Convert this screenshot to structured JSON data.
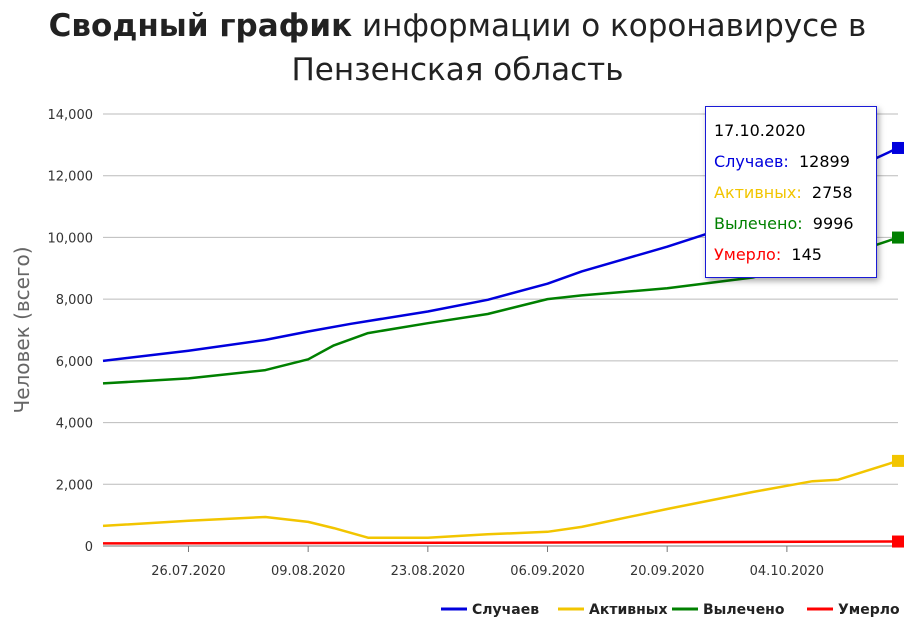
{
  "title": {
    "bold": "Сводный график",
    "rest": "информации о коронавирусе в",
    "line2": "Пензенская область"
  },
  "tooltip": {
    "date": "17.10.2020",
    "rows": [
      {
        "label": "Случаев:",
        "value": "12899",
        "color": "#0000dd"
      },
      {
        "label": "Активных:",
        "value": "2758",
        "color": "#f2c500"
      },
      {
        "label": "Вылечено:",
        "value": "9996",
        "color": "#008000"
      },
      {
        "label": "Умерло:",
        "value": "145",
        "color": "#ff0000"
      }
    ]
  },
  "chart_data": {
    "type": "line",
    "ylabel": "Человек (всего)",
    "xlabel": "",
    "ylim": [
      0,
      14000
    ],
    "yticks": [
      0,
      2000,
      4000,
      6000,
      8000,
      10000,
      12000,
      14000
    ],
    "ytick_labels": [
      "0",
      "2,000",
      "4,000",
      "6,000",
      "8,000",
      "10,000",
      "12,000",
      "14,000"
    ],
    "x_range": [
      "2020-07-16",
      "2020-10-17"
    ],
    "xticks": [
      "2020-07-26",
      "2020-08-09",
      "2020-08-23",
      "2020-09-06",
      "2020-09-20",
      "2020-10-04"
    ],
    "xtick_labels": [
      "26.07.2020",
      "09.08.2020",
      "23.08.2020",
      "06.09.2020",
      "20.09.2020",
      "04.10.2020"
    ],
    "grid": true,
    "legend_position": "bottom-right",
    "series": [
      {
        "name": "Случаев",
        "color": "#0000dd",
        "x": [
          "2020-07-16",
          "2020-07-26",
          "2020-08-04",
          "2020-08-09",
          "2020-08-14",
          "2020-08-23",
          "2020-08-30",
          "2020-09-06",
          "2020-09-10",
          "2020-09-20",
          "2020-09-30",
          "2020-10-04",
          "2020-10-10",
          "2020-10-17"
        ],
        "y": [
          6000,
          6330,
          6680,
          6950,
          7200,
          7600,
          7980,
          8500,
          8900,
          9700,
          10600,
          11100,
          12000,
          12899
        ]
      },
      {
        "name": "Активных",
        "color": "#f2c500",
        "x": [
          "2020-07-16",
          "2020-07-26",
          "2020-08-04",
          "2020-08-09",
          "2020-08-12",
          "2020-08-16",
          "2020-08-23",
          "2020-08-30",
          "2020-09-06",
          "2020-09-10",
          "2020-09-20",
          "2020-09-30",
          "2020-10-04",
          "2020-10-07",
          "2020-10-10",
          "2020-10-17"
        ],
        "y": [
          650,
          820,
          940,
          780,
          580,
          270,
          270,
          380,
          460,
          620,
          1200,
          1750,
          1950,
          2100,
          2150,
          2758
        ]
      },
      {
        "name": "Вылечено",
        "color": "#008000",
        "x": [
          "2020-07-16",
          "2020-07-26",
          "2020-08-04",
          "2020-08-09",
          "2020-08-12",
          "2020-08-16",
          "2020-08-23",
          "2020-08-30",
          "2020-09-06",
          "2020-09-10",
          "2020-09-20",
          "2020-09-30",
          "2020-10-04",
          "2020-10-10",
          "2020-10-17"
        ],
        "y": [
          5270,
          5430,
          5700,
          6050,
          6500,
          6900,
          7220,
          7520,
          8000,
          8120,
          8350,
          8700,
          9000,
          9350,
          9996
        ]
      },
      {
        "name": "Умерло",
        "color": "#ff0000",
        "x": [
          "2020-07-16",
          "2020-08-16",
          "2020-09-16",
          "2020-10-17"
        ],
        "y": [
          85,
          100,
          120,
          145
        ]
      }
    ]
  }
}
